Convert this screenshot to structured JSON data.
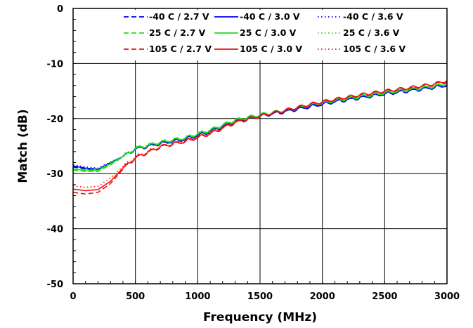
{
  "chart_data": {
    "type": "line",
    "xlabel": "Frequency (MHz)",
    "ylabel": "Match (dB)",
    "xlim": [
      0,
      3000
    ],
    "ylim": [
      -50,
      0
    ],
    "xticks": [
      0,
      500,
      1000,
      1500,
      2000,
      2500,
      3000
    ],
    "yticks": [
      0,
      -10,
      -20,
      -30,
      -40,
      -50
    ],
    "xtick_labels": [
      "0",
      "500",
      "1000",
      "1500",
      "2000",
      "2500",
      "3000"
    ],
    "ytick_labels": [
      "0",
      "-10",
      "-20",
      "-30",
      "-40",
      "-50"
    ],
    "grid": true,
    "legend_position": "top",
    "ripple_period_mhz": 100,
    "series": [
      {
        "name": "-40 C / 2.7 V",
        "color": "#0000ee",
        "dash": "dashed",
        "x": [
          0,
          100,
          200,
          300,
          400,
          500,
          700,
          900,
          1100,
          1300,
          1500,
          1700,
          1900,
          2100,
          2300,
          2500,
          2700,
          2900,
          3000
        ],
        "y": [
          -28.8,
          -29.2,
          -29.4,
          -28.2,
          -27.0,
          -25.6,
          -24.6,
          -23.8,
          -22.4,
          -20.6,
          -19.6,
          -18.8,
          -17.9,
          -17.0,
          -16.3,
          -15.6,
          -15.0,
          -14.4,
          -14.0
        ],
        "ripple": 0.25
      },
      {
        "name": "-40 C / 3.0 V",
        "color": "#0000ee",
        "dash": "solid",
        "x": [
          0,
          100,
          200,
          300,
          400,
          500,
          700,
          900,
          1100,
          1300,
          1500,
          1700,
          1900,
          2100,
          2300,
          2500,
          2700,
          2900,
          3000
        ],
        "y": [
          -28.6,
          -29.0,
          -29.2,
          -28.0,
          -26.9,
          -25.5,
          -24.5,
          -23.7,
          -22.3,
          -20.5,
          -19.5,
          -18.7,
          -17.8,
          -16.9,
          -16.2,
          -15.5,
          -14.9,
          -14.3,
          -13.9
        ],
        "ripple": 0.25
      },
      {
        "name": "-40 C / 3.6 V",
        "color": "#0000ee",
        "dash": "dotted",
        "x": [
          0,
          100,
          200,
          300,
          400,
          500,
          700,
          900,
          1100,
          1300,
          1500,
          1700,
          1900,
          2100,
          2300,
          2500,
          2700,
          2900,
          3000
        ],
        "y": [
          -28.4,
          -28.8,
          -29.0,
          -27.9,
          -26.8,
          -25.4,
          -24.4,
          -23.6,
          -22.2,
          -20.4,
          -19.5,
          -18.7,
          -17.8,
          -16.9,
          -16.2,
          -15.5,
          -14.9,
          -14.3,
          -13.9
        ],
        "ripple": 0.25
      },
      {
        "name": "25 C / 2.7 V",
        "color": "#22dd22",
        "dash": "dashed",
        "x": [
          0,
          100,
          200,
          300,
          400,
          500,
          700,
          900,
          1100,
          1300,
          1500,
          1700,
          1900,
          2100,
          2300,
          2500,
          2700,
          2900,
          3000
        ],
        "y": [
          -29.4,
          -29.6,
          -29.6,
          -28.4,
          -27.0,
          -25.5,
          -24.4,
          -23.6,
          -22.2,
          -20.4,
          -19.4,
          -18.6,
          -17.6,
          -16.8,
          -16.1,
          -15.4,
          -14.8,
          -14.2,
          -13.7
        ],
        "ripple": 0.25
      },
      {
        "name": "25 C / 3.0 V",
        "color": "#22dd22",
        "dash": "solid",
        "x": [
          0,
          100,
          200,
          300,
          400,
          500,
          700,
          900,
          1100,
          1300,
          1500,
          1700,
          1900,
          2100,
          2300,
          2500,
          2700,
          2900,
          3000
        ],
        "y": [
          -29.2,
          -29.4,
          -29.4,
          -28.2,
          -26.9,
          -25.4,
          -24.3,
          -23.5,
          -22.1,
          -20.3,
          -19.3,
          -18.5,
          -17.5,
          -16.7,
          -16.0,
          -15.3,
          -14.7,
          -14.1,
          -13.6
        ],
        "ripple": 0.25
      },
      {
        "name": "25 C / 3.6 V",
        "color": "#22dd22",
        "dash": "dotted",
        "x": [
          0,
          100,
          200,
          300,
          400,
          500,
          700,
          900,
          1100,
          1300,
          1500,
          1700,
          1900,
          2100,
          2300,
          2500,
          2700,
          2900,
          3000
        ],
        "y": [
          -29.0,
          -29.2,
          -29.2,
          -28.0,
          -26.8,
          -25.3,
          -24.2,
          -23.4,
          -22.0,
          -20.2,
          -19.3,
          -18.5,
          -17.5,
          -16.7,
          -16.0,
          -15.3,
          -14.7,
          -14.1,
          -13.6
        ],
        "ripple": 0.25
      },
      {
        "name": "105 C / 2.7 V",
        "color": "#ee1111",
        "dash": "dashed",
        "x": [
          0,
          100,
          200,
          300,
          400,
          500,
          700,
          900,
          1100,
          1300,
          1500,
          1700,
          1900,
          2100,
          2300,
          2500,
          2700,
          2900,
          3000
        ],
        "y": [
          -33.4,
          -33.7,
          -33.4,
          -31.8,
          -29.2,
          -27.2,
          -25.2,
          -24.2,
          -22.8,
          -20.8,
          -19.6,
          -18.6,
          -17.5,
          -16.6,
          -15.8,
          -15.1,
          -14.5,
          -13.8,
          -13.3
        ],
        "ripple": 0.25
      },
      {
        "name": "105 C / 3.0 V",
        "color": "#ee1111",
        "dash": "solid",
        "x": [
          0,
          100,
          200,
          300,
          400,
          500,
          700,
          900,
          1100,
          1300,
          1500,
          1700,
          1900,
          2100,
          2300,
          2500,
          2700,
          2900,
          3000
        ],
        "y": [
          -32.8,
          -33.1,
          -32.9,
          -31.4,
          -29.0,
          -27.1,
          -25.1,
          -24.1,
          -22.7,
          -20.7,
          -19.5,
          -18.5,
          -17.4,
          -16.5,
          -15.7,
          -15.0,
          -14.4,
          -13.7,
          -13.1
        ],
        "ripple": 0.25
      },
      {
        "name": "105 C / 3.6 V",
        "color": "#ee1111",
        "dash": "dotted",
        "x": [
          0,
          100,
          200,
          300,
          400,
          500,
          700,
          900,
          1100,
          1300,
          1500,
          1700,
          1900,
          2100,
          2300,
          2500,
          2700,
          2900,
          3000
        ],
        "y": [
          -32.2,
          -32.5,
          -32.3,
          -30.8,
          -28.7,
          -26.9,
          -25.0,
          -24.0,
          -22.6,
          -20.6,
          -19.5,
          -18.5,
          -17.4,
          -16.5,
          -15.7,
          -15.0,
          -14.4,
          -13.7,
          -13.1
        ],
        "ripple": 0.25
      }
    ]
  }
}
